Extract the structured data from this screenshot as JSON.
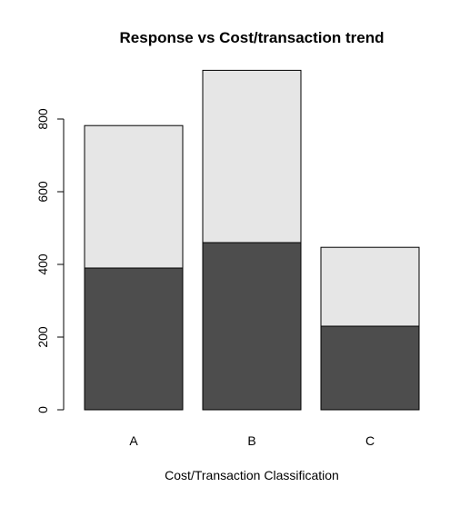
{
  "chart_data": {
    "type": "bar",
    "stacked": true,
    "title": "Response vs Cost/transaction trend",
    "xlabel": "Cost/Transaction Classification",
    "ylabel": "",
    "categories": [
      "A",
      "B",
      "C"
    ],
    "series": [
      {
        "values": [
          390,
          460,
          230
        ],
        "color": "#4d4d4d"
      },
      {
        "values": [
          392,
          474,
          217
        ],
        "color": "#e6e6e6"
      }
    ],
    "ylim": [
      0,
      950
    ],
    "yticks": [
      0,
      200,
      400,
      600,
      800
    ],
    "grid": false,
    "legend": "none"
  }
}
